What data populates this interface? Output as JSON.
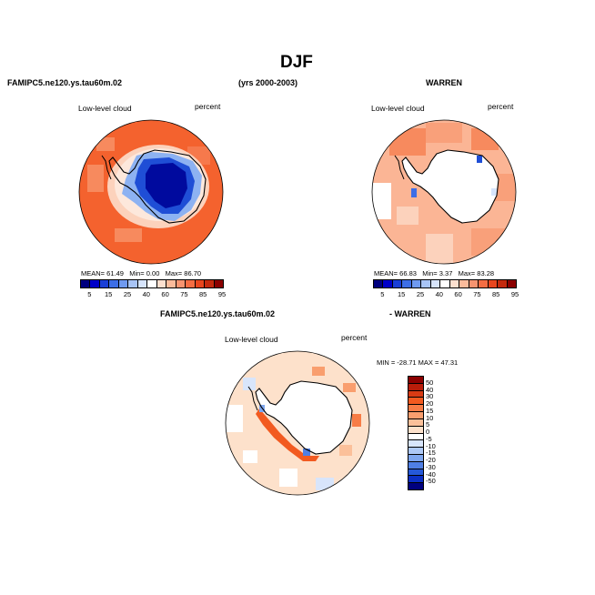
{
  "figure": {
    "title": "DJF",
    "left_header": "FAMIPC5.ne120.ys.tau60m.02",
    "center_header": "(yrs 2000-2003)",
    "right_header": "WARREN",
    "diff_left_header": "FAMIPC5.ne120.ys.tau60m.02",
    "diff_right_header": "- WARREN"
  },
  "panels": [
    {
      "variable": "Low-level cloud",
      "units": "percent",
      "mean_label": "MEAN=",
      "mean": "61.49",
      "min_label": "Min=",
      "min": "0.00",
      "max_label": "Max=",
      "max": "86.70"
    },
    {
      "variable": "Low-level cloud",
      "units": "percent",
      "mean_label": "MEAN=",
      "mean": "66.83",
      "min_label": "Min=",
      "min": "3.37",
      "max_label": "Max=",
      "max": "83.28"
    },
    {
      "variable": "Low-level cloud",
      "units": "percent",
      "minmax_text": "MIN = -28.71   MAX =  47.31"
    }
  ],
  "colorbar_main": {
    "labels": [
      "5",
      "15",
      "25",
      "40",
      "60",
      "75",
      "85",
      "95"
    ],
    "colors": [
      "#00007f",
      "#0000c8",
      "#1a3fd6",
      "#3d6ee6",
      "#6f9af0",
      "#a8c4f5",
      "#d6e4fb",
      "#ffffff",
      "#fde0cf",
      "#fbbb9b",
      "#f79470",
      "#f46d43",
      "#e8461e",
      "#c42a0e",
      "#8b0000"
    ]
  },
  "colorbar_diff": {
    "labels": [
      "50",
      "40",
      "30",
      "20",
      "15",
      "10",
      "5",
      "0",
      "-5",
      "-10",
      "-15",
      "-20",
      "-30",
      "-40",
      "-50"
    ],
    "colors": [
      "#8b0000",
      "#b81d0a",
      "#d83b14",
      "#f25a20",
      "#f77c46",
      "#f99e6e",
      "#fbc09a",
      "#fde1cb",
      "#ffffff",
      "#d8e5fb",
      "#adc8f5",
      "#7ea6ee",
      "#4f7fe4",
      "#2558d8",
      "#0b2fc4",
      "#00007f"
    ]
  },
  "map_colors": {
    "ocean_orange": "#f4622e",
    "ocean_light": "#fbb595",
    "ocean_pale": "#fcd2bc",
    "ice_dark_blue": "#000a9e",
    "ice_mid_blue": "#1f4ed6",
    "ice_light_blue": "#8db2f2",
    "no_data": "#ffffff",
    "coast": "#000000"
  }
}
